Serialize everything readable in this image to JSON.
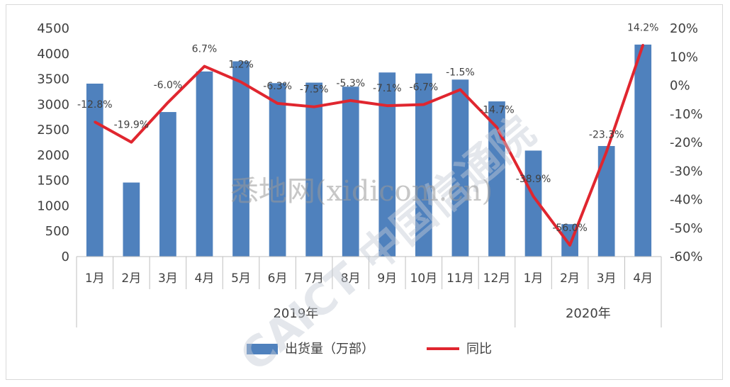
{
  "chart_data": {
    "type": "bar",
    "categories": [
      "1月",
      "2月",
      "3月",
      "4月",
      "5月",
      "6月",
      "7月",
      "8月",
      "9月",
      "10月",
      "11月",
      "12月",
      "1月",
      "2月",
      "3月",
      "4月"
    ],
    "groups": [
      {
        "label": "2019年",
        "start": 0,
        "end": 11
      },
      {
        "label": "2020年",
        "start": 12,
        "end": 15
      }
    ],
    "series": [
      {
        "name": "出货量（万部）",
        "type": "bar",
        "axis": "left",
        "values": [
          3410,
          1460,
          2850,
          3650,
          3850,
          3420,
          3430,
          3350,
          3630,
          3610,
          3490,
          3060,
          2090,
          640,
          2180,
          4180
        ]
      },
      {
        "name": "同比",
        "type": "line",
        "axis": "right",
        "values": [
          -12.8,
          -19.9,
          -6.0,
          6.7,
          1.2,
          -6.3,
          -7.5,
          -5.3,
          -7.1,
          -6.7,
          -1.5,
          -14.7,
          -38.9,
          -56.0,
          -23.3,
          14.2
        ],
        "labels": [
          "-12.8%",
          "-19.9%",
          "-6.0%",
          "6.7%",
          "1.2%",
          "-6.3%",
          "-7.5%",
          "-5.3%",
          "-7.1%",
          "-6.7%",
          "-1.5%",
          "-14.7%",
          "-38.9%",
          "-56.0%",
          "-23.3%",
          "14.2%"
        ]
      }
    ],
    "y_left": {
      "min": 0,
      "max": 4500,
      "step": 500
    },
    "y_right": {
      "min": -60,
      "max": 20,
      "step": 10
    },
    "legend_position": "bottom",
    "colors": {
      "bar": "#4f81bd",
      "line": "#e0262f"
    }
  },
  "watermark": "悉地网(xidicom.cn)",
  "logo_text": "CAICT 中国信通院"
}
